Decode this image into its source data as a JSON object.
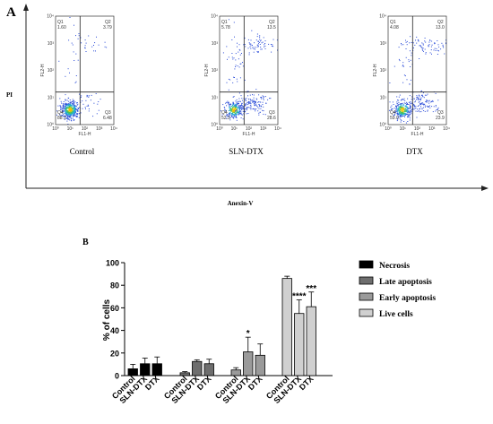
{
  "panel_a": {
    "label": "A",
    "y_axis_label": "PI",
    "x_axis_label": "Anexin-V",
    "plots": [
      {
        "caption": "Control",
        "q1": "1.60",
        "q2": "3.79",
        "q3": "6.48",
        "q4": "88.1",
        "q1_label": "Q1",
        "q2_label": "Q2",
        "q3_label": "Q3",
        "q4_label": "Q4",
        "x_axis": "FL1-H",
        "y_axis": "FL2-H"
      },
      {
        "caption": "SLN-DTX",
        "q1": "5.78",
        "q2": "13.5",
        "q3": "28.6",
        "q4": "52.3",
        "q1_label": "Q1",
        "q2_label": "Q2",
        "q3_label": "Q3",
        "q4_label": "Q4",
        "x_axis": "FL1-H",
        "y_axis": "FL2-H"
      },
      {
        "caption": "DTX",
        "q1": "4.08",
        "q2": "13.0",
        "q3": "23.9",
        "q4": "59.0",
        "q1_label": "Q1",
        "q2_label": "Q2",
        "q3_label": "Q3",
        "q4_label": "Q4",
        "x_axis": "FL1-H",
        "y_axis": "FL2-H"
      }
    ]
  },
  "chart_data": {
    "type": "bar",
    "panel_label": "B",
    "ylabel": "% of cells",
    "ylim": [
      0,
      100
    ],
    "yticks": [
      "0",
      "20",
      "40",
      "60",
      "80",
      "100"
    ],
    "legend_position": "right",
    "groups": [
      {
        "series": "Necrosis",
        "color": "#000000",
        "categories": [
          "Control",
          "SLN-DTX",
          "DTX"
        ],
        "values": [
          6,
          10.5,
          10.5
        ],
        "errors": [
          4,
          5,
          6
        ],
        "sig": [
          "",
          "",
          ""
        ]
      },
      {
        "series": "Late apoptosis",
        "color": "#6e6e6e",
        "categories": [
          "Control",
          "SLN-DTX",
          "DTX"
        ],
        "values": [
          2.5,
          12.5,
          10.5
        ],
        "errors": [
          1,
          1.5,
          4
        ],
        "sig": [
          "",
          "",
          ""
        ]
      },
      {
        "series": "Early apoptosis",
        "color": "#9a9a9a",
        "categories": [
          "Control",
          "SLN-DTX",
          "DTX"
        ],
        "values": [
          5,
          21,
          18
        ],
        "errors": [
          2,
          13,
          10
        ],
        "sig": [
          "",
          "*",
          ""
        ]
      },
      {
        "series": "Live cells",
        "color": "#d0d0d0",
        "categories": [
          "Control",
          "SLN-DTX",
          "DTX"
        ],
        "values": [
          86,
          55,
          61
        ],
        "errors": [
          2,
          12,
          13
        ],
        "sig": [
          "",
          "****",
          "***"
        ]
      }
    ]
  }
}
